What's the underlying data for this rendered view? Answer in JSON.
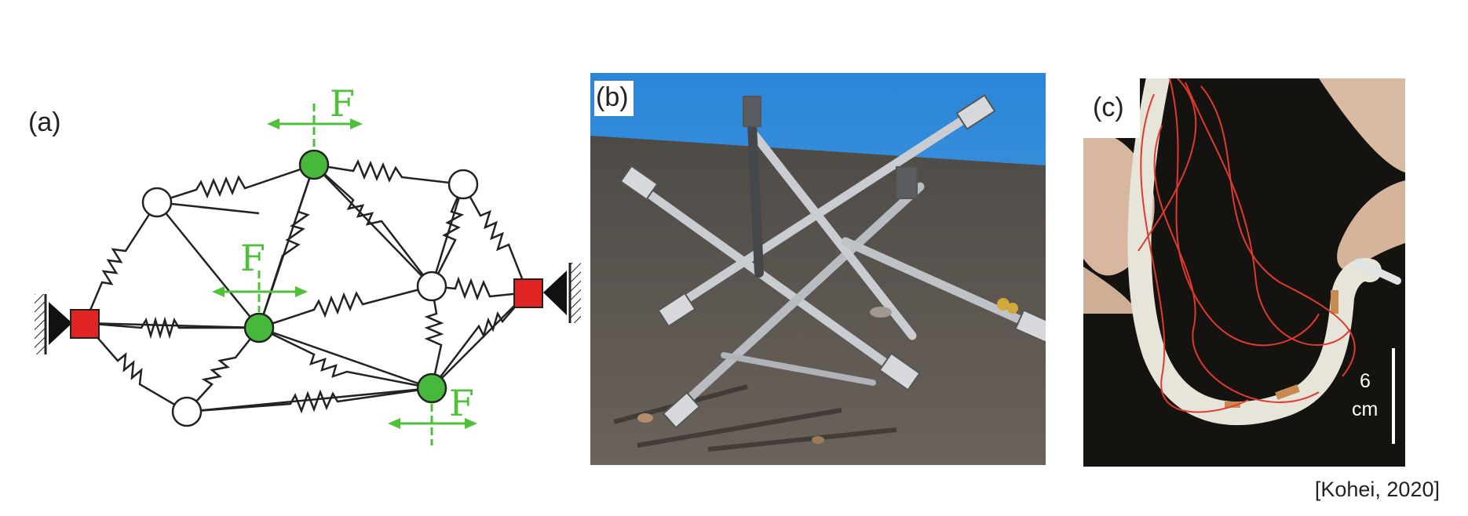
{
  "panels": {
    "a": {
      "label": "(a)",
      "force_label": "F"
    },
    "b": {
      "label": "(b)"
    },
    "c": {
      "label": "(c)",
      "scale_value": "6",
      "scale_unit": "cm"
    }
  },
  "citation": "[Kohei, 2020]",
  "colors": {
    "fixed_node": "#e02424",
    "force_node": "#46b83c",
    "force_arrow": "#4fc03a",
    "sky": "#3d8fd6",
    "ground": "#5b5650",
    "photo_c_bg": "#15130f",
    "wire": "#e03a2f"
  }
}
